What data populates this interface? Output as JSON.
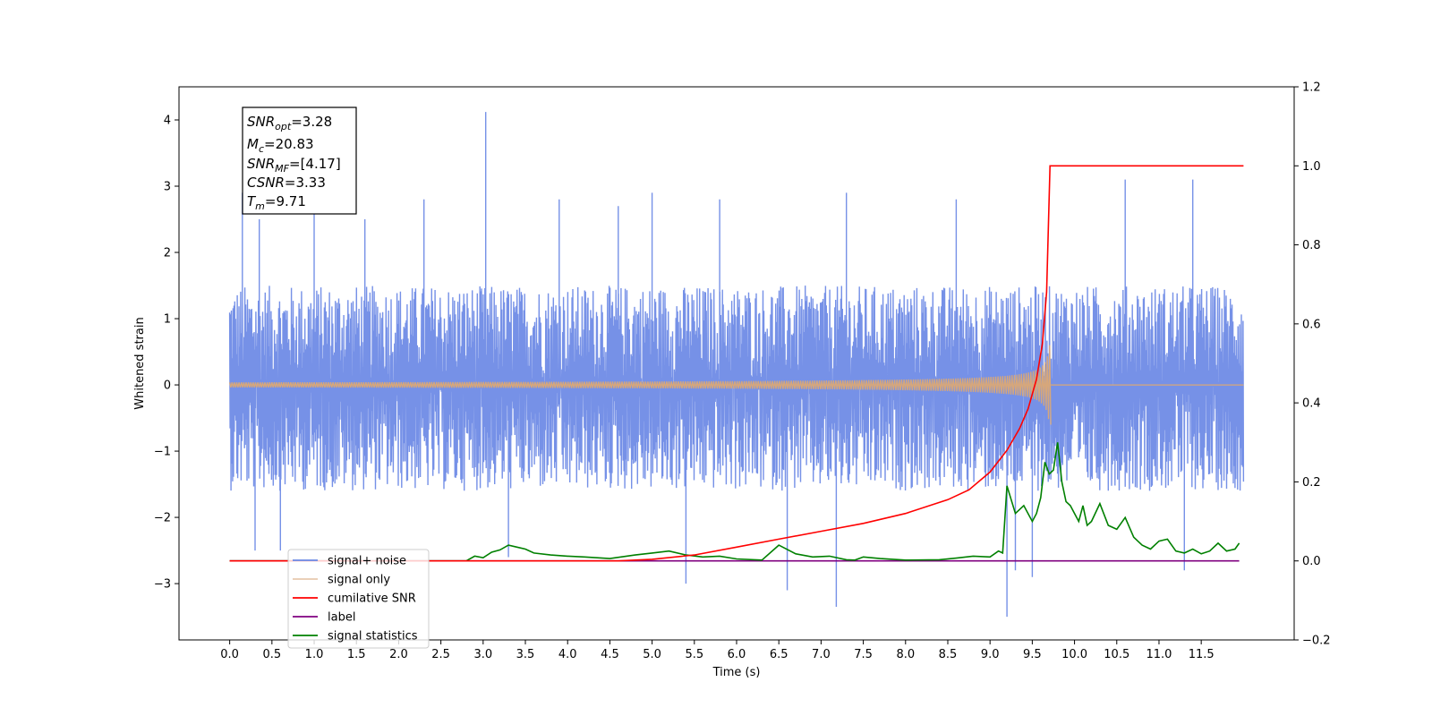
{
  "chart_data": {
    "type": "line",
    "xlabel": "Time (s)",
    "ylabel": "Whitened strain",
    "xlim": [
      -0.6,
      12.6
    ],
    "ylim": [
      -3.85,
      4.5
    ],
    "y2lim": [
      -0.2,
      1.2
    ],
    "x_ticks": [
      "0.0",
      "0.5",
      "1.0",
      "1.5",
      "2.0",
      "2.5",
      "3.0",
      "3.5",
      "4.0",
      "4.5",
      "5.0",
      "5.5",
      "6.0",
      "6.5",
      "7.0",
      "7.5",
      "8.0",
      "8.5",
      "9.0",
      "9.5",
      "10.0",
      "10.5",
      "11.0",
      "11.5"
    ],
    "y_ticks": [
      -3,
      -2,
      -1,
      0,
      1,
      2,
      3,
      4
    ],
    "y_tick_labels": [
      "−3",
      "−2",
      "−1",
      "0",
      "1",
      "2",
      "3",
      "4"
    ],
    "y2_ticks": [
      -0.2,
      0.0,
      0.2,
      0.4,
      0.6,
      0.8,
      1.0,
      1.2
    ],
    "y2_tick_labels": [
      "−0.2",
      "0.0",
      "0.2",
      "0.4",
      "0.6",
      "0.8",
      "1.0",
      "1.2"
    ],
    "legend_position": "lower-left",
    "series": [
      {
        "name": "signal+ noise",
        "axis": "left",
        "color": "#6a88e5",
        "x_range": [
          0,
          12
        ],
        "band": [
          -1.6,
          1.5
        ],
        "spikes": [
          [
            0.15,
            2.9
          ],
          [
            0.35,
            2.5
          ],
          [
            1.0,
            2.6
          ],
          [
            1.6,
            2.5
          ],
          [
            2.3,
            2.8
          ],
          [
            3.03,
            4.12
          ],
          [
            3.9,
            2.8
          ],
          [
            4.6,
            2.7
          ],
          [
            5.0,
            2.9
          ],
          [
            5.8,
            2.8
          ],
          [
            7.3,
            2.9
          ],
          [
            8.6,
            2.8
          ],
          [
            10.6,
            3.1
          ],
          [
            11.4,
            3.1
          ],
          [
            0.3,
            -2.5
          ],
          [
            0.6,
            -2.5
          ],
          [
            3.3,
            -2.6
          ],
          [
            5.4,
            -3.0
          ],
          [
            6.6,
            -3.1
          ],
          [
            7.18,
            -3.35
          ],
          [
            9.2,
            -3.5
          ],
          [
            9.3,
            -2.8
          ],
          [
            9.5,
            -2.9
          ],
          [
            11.3,
            -2.8
          ]
        ]
      },
      {
        "name": "signal only",
        "axis": "left",
        "color": "#d7a77a",
        "chirp_end": 9.72,
        "peak_amplitude": 0.6
      },
      {
        "name": "cumilative SNR",
        "axis": "right",
        "color": "#ff0000",
        "points": [
          [
            0,
            0
          ],
          [
            4.6,
            0
          ],
          [
            5.0,
            0.004
          ],
          [
            5.5,
            0.015
          ],
          [
            6.0,
            0.035
          ],
          [
            6.5,
            0.055
          ],
          [
            7.0,
            0.075
          ],
          [
            7.5,
            0.095
          ],
          [
            8.0,
            0.12
          ],
          [
            8.5,
            0.155
          ],
          [
            8.75,
            0.18
          ],
          [
            9.0,
            0.225
          ],
          [
            9.2,
            0.28
          ],
          [
            9.35,
            0.335
          ],
          [
            9.45,
            0.385
          ],
          [
            9.55,
            0.46
          ],
          [
            9.62,
            0.55
          ],
          [
            9.67,
            0.68
          ],
          [
            9.71,
            1.0
          ],
          [
            12.0,
            1.0
          ]
        ]
      },
      {
        "name": "label",
        "axis": "right",
        "color": "#800080",
        "points": [
          [
            0,
            0
          ],
          [
            11.95,
            0
          ]
        ]
      },
      {
        "name": "signal statistics",
        "axis": "right",
        "color": "#008000",
        "points": [
          [
            0,
            0
          ],
          [
            2.8,
            0.0
          ],
          [
            2.9,
            0.012
          ],
          [
            3.0,
            0.008
          ],
          [
            3.1,
            0.022
          ],
          [
            3.2,
            0.028
          ],
          [
            3.3,
            0.04
          ],
          [
            3.4,
            0.035
          ],
          [
            3.5,
            0.03
          ],
          [
            3.6,
            0.02
          ],
          [
            3.8,
            0.015
          ],
          [
            4.0,
            0.012
          ],
          [
            4.2,
            0.01
          ],
          [
            4.5,
            0.006
          ],
          [
            4.8,
            0.015
          ],
          [
            5.0,
            0.02
          ],
          [
            5.2,
            0.025
          ],
          [
            5.4,
            0.015
          ],
          [
            5.6,
            0.01
          ],
          [
            5.8,
            0.012
          ],
          [
            6.0,
            0.005
          ],
          [
            6.3,
            0.002
          ],
          [
            6.5,
            0.04
          ],
          [
            6.7,
            0.018
          ],
          [
            6.9,
            0.01
          ],
          [
            7.1,
            0.012
          ],
          [
            7.3,
            0.003
          ],
          [
            7.4,
            0.002
          ],
          [
            7.5,
            0.01
          ],
          [
            7.7,
            0.006
          ],
          [
            8.0,
            0.002
          ],
          [
            8.4,
            0.003
          ],
          [
            8.6,
            0.007
          ],
          [
            8.8,
            0.012
          ],
          [
            9.0,
            0.01
          ],
          [
            9.1,
            0.025
          ],
          [
            9.15,
            0.02
          ],
          [
            9.2,
            0.19
          ],
          [
            9.3,
            0.12
          ],
          [
            9.4,
            0.14
          ],
          [
            9.5,
            0.1
          ],
          [
            9.55,
            0.12
          ],
          [
            9.6,
            0.16
          ],
          [
            9.65,
            0.25
          ],
          [
            9.7,
            0.22
          ],
          [
            9.75,
            0.23
          ],
          [
            9.8,
            0.3
          ],
          [
            9.85,
            0.2
          ],
          [
            9.9,
            0.15
          ],
          [
            9.95,
            0.14
          ],
          [
            10.0,
            0.12
          ],
          [
            10.05,
            0.1
          ],
          [
            10.1,
            0.14
          ],
          [
            10.15,
            0.09
          ],
          [
            10.2,
            0.1
          ],
          [
            10.3,
            0.145
          ],
          [
            10.4,
            0.09
          ],
          [
            10.5,
            0.08
          ],
          [
            10.6,
            0.11
          ],
          [
            10.7,
            0.06
          ],
          [
            10.8,
            0.04
          ],
          [
            10.9,
            0.03
          ],
          [
            11.0,
            0.05
          ],
          [
            11.1,
            0.055
          ],
          [
            11.2,
            0.025
          ],
          [
            11.3,
            0.02
          ],
          [
            11.4,
            0.03
          ],
          [
            11.5,
            0.018
          ],
          [
            11.6,
            0.025
          ],
          [
            11.7,
            0.045
          ],
          [
            11.8,
            0.025
          ],
          [
            11.9,
            0.03
          ],
          [
            11.95,
            0.045
          ]
        ]
      }
    ],
    "annotation": {
      "lines": [
        {
          "var": "SNR",
          "sub": "opt",
          "text": "=3.28"
        },
        {
          "var": "M",
          "sub": "c",
          "text": "=20.83"
        },
        {
          "var": "SNR",
          "sub": "MF",
          "text": "=[4.17]"
        },
        {
          "var": "CSNR",
          "sub": "",
          "text": "=3.33"
        },
        {
          "var": "T",
          "sub": "m",
          "text": "=9.71"
        }
      ]
    },
    "legend": [
      "signal+ noise",
      "signal only",
      "cumilative SNR",
      "label",
      "signal statistics"
    ]
  }
}
